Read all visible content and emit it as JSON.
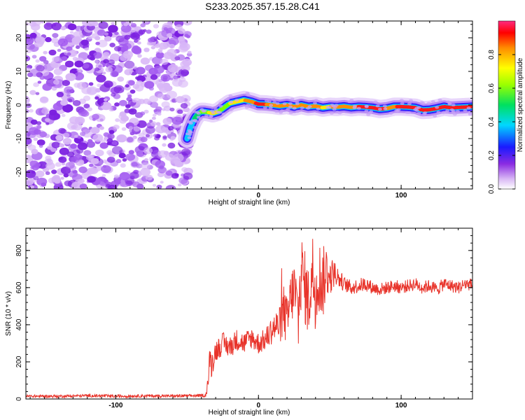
{
  "title": "S233.2025.357.15.28.C41",
  "chart_data": [
    {
      "type": "heatmap",
      "title": "S233.2025.357.15.28.C41",
      "xlabel": "Height of straight line (km)",
      "ylabel": "Frequency (Hz)",
      "xlim": [
        -163,
        150
      ],
      "ylim": [
        -25,
        25
      ],
      "xticks": [
        -100,
        0,
        100
      ],
      "yticks": [
        -20,
        -10,
        0,
        10,
        20
      ],
      "noise_region_x": [
        -163,
        -48
      ],
      "noise_color": "#8a2be2",
      "ridge": {
        "x": [
          -50,
          -48,
          -46,
          -44,
          -42,
          -40,
          -38,
          -35,
          -32,
          -28,
          -25,
          -20,
          -15,
          -10,
          -5,
          0,
          5,
          10,
          15,
          20,
          25,
          30,
          35,
          40,
          45,
          50,
          55,
          60,
          65,
          70,
          75,
          80,
          85,
          90,
          95,
          100,
          105,
          110,
          115,
          120,
          125,
          130,
          135,
          140,
          145,
          150
        ],
        "freq": [
          -10,
          -7,
          -5,
          -3.5,
          -2.5,
          -2,
          -2,
          -2.2,
          -2.5,
          -2,
          -1,
          0.5,
          1,
          1.5,
          1,
          0.3,
          0.2,
          0,
          -0.3,
          0,
          -0.5,
          0,
          -0.5,
          -0.3,
          -0.8,
          -0.5,
          -0.6,
          -0.4,
          -0.7,
          -0.5,
          -0.6,
          -0.8,
          -1.2,
          -1,
          -0.5,
          -0.5,
          -0.6,
          -0.8,
          -1.5,
          -1.4,
          -1,
          -0.5,
          -0.8,
          -0.7,
          -0.6,
          -0.5
        ],
        "amplitude": [
          0.3,
          0.35,
          0.4,
          0.5,
          0.55,
          0.6,
          0.65,
          0.7,
          0.75,
          0.7,
          0.65,
          0.7,
          0.75,
          0.8,
          0.85,
          0.95,
          0.9,
          0.88,
          0.85,
          0.9,
          0.85,
          0.8,
          0.82,
          0.85,
          0.8,
          0.8,
          0.85,
          0.9,
          0.88,
          0.9,
          0.92,
          0.9,
          0.93,
          0.9,
          0.88,
          0.92,
          0.93,
          0.95,
          0.9,
          0.92,
          0.93,
          0.9,
          0.92,
          0.95,
          0.93,
          0.9
        ]
      },
      "colorbar": {
        "label": "Normalized spectral amplitude",
        "range": [
          0,
          1
        ],
        "ticks": [
          0.0,
          0.2,
          0.4,
          0.6,
          0.8
        ],
        "tick_labels": [
          "0.0",
          "0.2",
          "0.4",
          "0.6",
          "0.8"
        ]
      }
    },
    {
      "type": "line",
      "xlabel": "Height of straight line (km)",
      "ylabel": "SNR (10 * v/v)",
      "xlim": [
        -163,
        150
      ],
      "ylim": [
        0,
        920
      ],
      "xticks": [
        -100,
        0,
        100
      ],
      "yticks": [
        0,
        200,
        400,
        600,
        800
      ],
      "color": "#e8332a",
      "series": [
        {
          "name": "SNR",
          "x": [
            -163,
            -140,
            -120,
            -100,
            -80,
            -60,
            -40,
            -37,
            -35,
            -34,
            -33,
            -30,
            -25,
            -20,
            -15,
            -10,
            -5,
            0,
            5,
            10,
            15,
            18,
            20,
            22,
            25,
            28,
            30,
            32,
            35,
            38,
            40,
            42,
            45,
            48,
            50,
            52,
            55,
            60,
            65,
            70,
            75,
            80,
            85,
            90,
            95,
            100,
            105,
            110,
            115,
            120,
            125,
            130,
            135,
            140,
            145,
            150
          ],
          "values": [
            15,
            15,
            18,
            15,
            17,
            16,
            18,
            20,
            110,
            230,
            180,
            260,
            300,
            280,
            320,
            300,
            330,
            300,
            320,
            380,
            400,
            480,
            400,
            520,
            600,
            430,
            700,
            620,
            520,
            700,
            560,
            670,
            620,
            700,
            640,
            680,
            660,
            620,
            600,
            610,
            620,
            600,
            590,
            600,
            610,
            600,
            610,
            620,
            600,
            610,
            590,
            620,
            610,
            600,
            620,
            615
          ],
          "noise": [
            8,
            8,
            8,
            8,
            8,
            8,
            8,
            10,
            60,
            70,
            70,
            60,
            60,
            60,
            60,
            60,
            60,
            60,
            60,
            80,
            100,
            150,
            150,
            150,
            160,
            200,
            200,
            200,
            200,
            200,
            200,
            200,
            200,
            150,
            100,
            80,
            60,
            40,
            40,
            40,
            40,
            35,
            35,
            35,
            35,
            35,
            35,
            35,
            35,
            35,
            35,
            35,
            35,
            35,
            35,
            35
          ]
        }
      ]
    }
  ]
}
